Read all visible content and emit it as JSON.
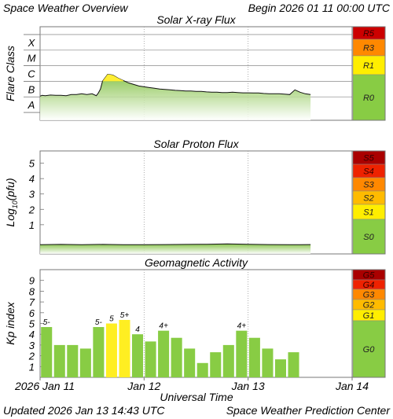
{
  "header": {
    "title": "Space Weather Overview",
    "begin_label": "Begin",
    "begin_value": "2026 01 11 00:00 UTC"
  },
  "footer": {
    "updated_label": "Updated",
    "updated_value": "2026 Jan 13 14:43 UTC",
    "source": "Space Weather Prediction Center"
  },
  "x_axis": {
    "title": "Universal Time",
    "tick_labels": [
      "2026 Jan 11",
      "Jan 12",
      "Jan 13",
      "Jan 14"
    ],
    "range_days": [
      0,
      3
    ]
  },
  "chart_data": [
    {
      "type": "line",
      "title": "Solar X-ray Flux",
      "ylabel": "Flare Class",
      "y_scale": "log",
      "y_tick_labels": [
        "A",
        "B",
        "C",
        "M",
        "X"
      ],
      "ylim": [
        -8.5,
        -2.5
      ],
      "scale_labels": [
        "R5",
        "R3",
        "R1",
        "R0"
      ],
      "scale_colors": [
        "#cc0000",
        "#ff8800",
        "#ffee00",
        "#88cc44"
      ],
      "series": [
        {
          "x_days": [
            0,
            0.02,
            0.05,
            0.1,
            0.15,
            0.2,
            0.25,
            0.3,
            0.35,
            0.4,
            0.45,
            0.5,
            0.54,
            0.56,
            0.58,
            0.6,
            0.65,
            0.7,
            0.75,
            0.8,
            0.85,
            0.9,
            0.95,
            1.0,
            1.05,
            1.1,
            1.15,
            1.2,
            1.25,
            1.3,
            1.35,
            1.4,
            1.45,
            1.5,
            1.55,
            1.6,
            1.65,
            1.7,
            1.75,
            1.8,
            1.85,
            1.9,
            1.95,
            2.0,
            2.05,
            2.1,
            2.15,
            2.2,
            2.25,
            2.3,
            2.35,
            2.4,
            2.45,
            2.5,
            2.55,
            2.6
          ],
          "log_flux": [
            -6.95,
            -6.9,
            -6.92,
            -6.88,
            -6.9,
            -6.9,
            -6.92,
            -6.85,
            -6.85,
            -6.8,
            -6.85,
            -6.8,
            -6.92,
            -6.75,
            -6.5,
            -6.0,
            -5.55,
            -5.6,
            -5.8,
            -5.95,
            -6.1,
            -6.2,
            -6.3,
            -6.35,
            -6.4,
            -6.45,
            -6.5,
            -6.52,
            -6.55,
            -6.58,
            -6.6,
            -6.62,
            -6.62,
            -6.65,
            -6.65,
            -6.68,
            -6.7,
            -6.7,
            -6.72,
            -6.72,
            -6.7,
            -6.72,
            -6.74,
            -6.74,
            -6.75,
            -6.75,
            -6.78,
            -6.8,
            -6.8,
            -6.8,
            -6.82,
            -6.85,
            -6.55,
            -6.7,
            -6.8,
            -6.85
          ]
        }
      ]
    },
    {
      "type": "line",
      "title": "Solar Proton Flux",
      "ylabel": "Log10(pfu)",
      "ylabel_parts": [
        "Log",
        "10",
        "(pfu)"
      ],
      "y_tick_labels": [
        "1",
        "2",
        "3",
        "4",
        "5"
      ],
      "ylim": [
        -0.9,
        5.8
      ],
      "scale_labels": [
        "S5",
        "S4",
        "S3",
        "S2",
        "S1",
        "S0"
      ],
      "scale_colors": [
        "#aa0000",
        "#ee2200",
        "#ff8800",
        "#ffbb00",
        "#ffee00",
        "#88cc44"
      ],
      "series": [
        {
          "x_days": [
            0,
            0.2,
            0.4,
            0.6,
            0.8,
            1.0,
            1.2,
            1.4,
            1.6,
            1.8,
            2.0,
            2.2,
            2.4,
            2.6
          ],
          "log_pfu": [
            -0.3,
            -0.28,
            -0.3,
            -0.28,
            -0.3,
            -0.3,
            -0.29,
            -0.28,
            -0.27,
            -0.25,
            -0.27,
            -0.29,
            -0.3,
            -0.29
          ]
        }
      ]
    },
    {
      "type": "bar",
      "title": "Geomagnetic Activity",
      "ylabel": "Kp index",
      "y_tick_labels": [
        "1",
        "2",
        "3",
        "4",
        "5",
        "6",
        "7",
        "8",
        "9"
      ],
      "ylim": [
        0,
        10
      ],
      "scale_labels": [
        "G5",
        "G4",
        "G3",
        "G2",
        "G1",
        "G0"
      ],
      "scale_colors": [
        "#aa0000",
        "#ee2200",
        "#ff8800",
        "#ffbb00",
        "#ffee00",
        "#88cc44"
      ],
      "bar_colors": {
        "below_5": "#88cc44",
        "at_or_above_5": "#ffee22"
      },
      "bars": [
        {
          "start_day": 0.0,
          "kp": 4.67,
          "label": "5-"
        },
        {
          "start_day": 0.125,
          "kp": 3.0,
          "label": ""
        },
        {
          "start_day": 0.25,
          "kp": 3.0,
          "label": ""
        },
        {
          "start_day": 0.375,
          "kp": 2.67,
          "label": ""
        },
        {
          "start_day": 0.5,
          "kp": 4.67,
          "label": "5-"
        },
        {
          "start_day": 0.625,
          "kp": 5.0,
          "label": "5"
        },
        {
          "start_day": 0.75,
          "kp": 5.33,
          "label": "5+"
        },
        {
          "start_day": 0.875,
          "kp": 4.0,
          "label": "4"
        },
        {
          "start_day": 1.0,
          "kp": 3.33,
          "label": ""
        },
        {
          "start_day": 1.125,
          "kp": 4.33,
          "label": "4+"
        },
        {
          "start_day": 1.25,
          "kp": 3.67,
          "label": ""
        },
        {
          "start_day": 1.375,
          "kp": 2.67,
          "label": ""
        },
        {
          "start_day": 1.5,
          "kp": 1.33,
          "label": ""
        },
        {
          "start_day": 1.625,
          "kp": 2.33,
          "label": ""
        },
        {
          "start_day": 1.75,
          "kp": 3.0,
          "label": ""
        },
        {
          "start_day": 1.875,
          "kp": 4.33,
          "label": "4+"
        },
        {
          "start_day": 2.0,
          "kp": 3.67,
          "label": ""
        },
        {
          "start_day": 2.125,
          "kp": 2.67,
          "label": ""
        },
        {
          "start_day": 2.25,
          "kp": 1.67,
          "label": ""
        },
        {
          "start_day": 2.375,
          "kp": 2.33,
          "label": ""
        }
      ]
    }
  ]
}
